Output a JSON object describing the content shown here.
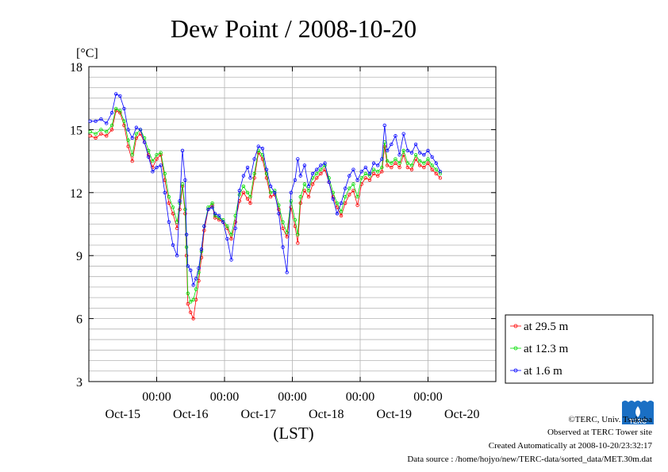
{
  "chart_data": {
    "type": "line",
    "title": "Dew Point / 2008-10-20",
    "ylabel": "[°C]",
    "xlabel": "(LST)",
    "ylim": [
      3,
      18
    ],
    "yticks": [
      3,
      6,
      9,
      12,
      15,
      18
    ],
    "xlim": [
      -1,
      5
    ],
    "xtick_positions": [
      0,
      1,
      2,
      3,
      4
    ],
    "xtick_time_labels": [
      "00:00",
      "00:00",
      "00:00",
      "00:00",
      "00:00"
    ],
    "day_labels": [
      "Oct-15",
      "Oct-16",
      "Oct-17",
      "Oct-18",
      "Oct-19",
      "Oct-20"
    ],
    "day_label_positions": [
      -0.5,
      0.5,
      1.5,
      2.5,
      3.5,
      4.5
    ],
    "x_unit": "days relative to Oct-16 00:00",
    "legend_position": "right",
    "grid": true,
    "series": [
      {
        "name": "at 29.5 m",
        "color": "#ff0000",
        "points": [
          [
            -0.98,
            14.7
          ],
          [
            -0.9,
            14.6
          ],
          [
            -0.82,
            14.8
          ],
          [
            -0.74,
            14.7
          ],
          [
            -0.66,
            15.0
          ],
          [
            -0.6,
            15.9
          ],
          [
            -0.54,
            15.8
          ],
          [
            -0.48,
            15.2
          ],
          [
            -0.42,
            14.2
          ],
          [
            -0.36,
            13.5
          ],
          [
            -0.3,
            14.6
          ],
          [
            -0.24,
            14.8
          ],
          [
            -0.18,
            14.4
          ],
          [
            -0.12,
            13.8
          ],
          [
            -0.06,
            13.2
          ],
          [
            0.0,
            13.6
          ],
          [
            0.06,
            13.8
          ],
          [
            0.12,
            12.6
          ],
          [
            0.18,
            11.5
          ],
          [
            0.24,
            11.0
          ],
          [
            0.3,
            10.3
          ],
          [
            0.34,
            11.2
          ],
          [
            0.38,
            12.3
          ],
          [
            0.42,
            11.0
          ],
          [
            0.44,
            9.0
          ],
          [
            0.46,
            6.7
          ],
          [
            0.5,
            6.3
          ],
          [
            0.54,
            6.0
          ],
          [
            0.58,
            6.9
          ],
          [
            0.62,
            7.8
          ],
          [
            0.66,
            8.9
          ],
          [
            0.7,
            10.2
          ],
          [
            0.76,
            11.2
          ],
          [
            0.82,
            11.4
          ],
          [
            0.86,
            10.8
          ],
          [
            0.92,
            10.7
          ],
          [
            0.98,
            10.6
          ],
          [
            1.04,
            10.3
          ],
          [
            1.1,
            9.8
          ],
          [
            1.16,
            10.6
          ],
          [
            1.22,
            11.6
          ],
          [
            1.28,
            12.0
          ],
          [
            1.34,
            11.7
          ],
          [
            1.38,
            11.5
          ],
          [
            1.44,
            12.7
          ],
          [
            1.5,
            13.9
          ],
          [
            1.56,
            13.6
          ],
          [
            1.62,
            12.7
          ],
          [
            1.68,
            11.8
          ],
          [
            1.74,
            11.9
          ],
          [
            1.8,
            11.2
          ],
          [
            1.86,
            10.3
          ],
          [
            1.92,
            9.9
          ],
          [
            1.98,
            11.3
          ],
          [
            2.04,
            10.4
          ],
          [
            2.08,
            9.6
          ],
          [
            2.12,
            11.5
          ],
          [
            2.18,
            12.1
          ],
          [
            2.24,
            11.8
          ],
          [
            2.3,
            12.4
          ],
          [
            2.36,
            12.7
          ],
          [
            2.42,
            12.9
          ],
          [
            2.48,
            13.1
          ],
          [
            2.54,
            12.5
          ],
          [
            2.6,
            11.8
          ],
          [
            2.66,
            11.3
          ],
          [
            2.72,
            10.9
          ],
          [
            2.78,
            11.5
          ],
          [
            2.84,
            11.9
          ],
          [
            2.9,
            12.1
          ],
          [
            2.96,
            11.4
          ],
          [
            3.02,
            12.4
          ],
          [
            3.08,
            12.7
          ],
          [
            3.14,
            12.6
          ],
          [
            3.2,
            12.9
          ],
          [
            3.26,
            12.8
          ],
          [
            3.32,
            13.0
          ],
          [
            3.36,
            14.2
          ],
          [
            3.4,
            13.3
          ],
          [
            3.46,
            13.2
          ],
          [
            3.52,
            13.4
          ],
          [
            3.58,
            13.2
          ],
          [
            3.64,
            13.8
          ],
          [
            3.7,
            13.2
          ],
          [
            3.76,
            13.1
          ],
          [
            3.82,
            13.6
          ],
          [
            3.88,
            13.3
          ],
          [
            3.94,
            13.2
          ],
          [
            4.0,
            13.4
          ],
          [
            4.06,
            13.1
          ],
          [
            4.12,
            12.9
          ],
          [
            4.18,
            12.7
          ]
        ]
      },
      {
        "name": "at 12.3 m",
        "color": "#00dd00",
        "points": [
          [
            -0.98,
            14.9
          ],
          [
            -0.9,
            14.8
          ],
          [
            -0.82,
            15.0
          ],
          [
            -0.74,
            14.9
          ],
          [
            -0.66,
            15.2
          ],
          [
            -0.6,
            16.0
          ],
          [
            -0.54,
            15.9
          ],
          [
            -0.48,
            15.4
          ],
          [
            -0.42,
            14.5
          ],
          [
            -0.36,
            13.8
          ],
          [
            -0.3,
            14.8
          ],
          [
            -0.24,
            15.0
          ],
          [
            -0.18,
            14.6
          ],
          [
            -0.12,
            14.0
          ],
          [
            -0.06,
            13.5
          ],
          [
            0.0,
            13.8
          ],
          [
            0.06,
            13.9
          ],
          [
            0.12,
            12.9
          ],
          [
            0.18,
            11.8
          ],
          [
            0.24,
            11.3
          ],
          [
            0.3,
            10.6
          ],
          [
            0.34,
            11.5
          ],
          [
            0.38,
            12.4
          ],
          [
            0.42,
            11.2
          ],
          [
            0.44,
            9.4
          ],
          [
            0.46,
            7.2
          ],
          [
            0.5,
            6.8
          ],
          [
            0.54,
            6.9
          ],
          [
            0.58,
            7.4
          ],
          [
            0.62,
            8.2
          ],
          [
            0.66,
            9.2
          ],
          [
            0.7,
            10.4
          ],
          [
            0.76,
            11.3
          ],
          [
            0.82,
            11.5
          ],
          [
            0.86,
            10.9
          ],
          [
            0.92,
            10.8
          ],
          [
            0.98,
            10.7
          ],
          [
            1.04,
            10.4
          ],
          [
            1.1,
            10.0
          ],
          [
            1.16,
            10.9
          ],
          [
            1.22,
            11.9
          ],
          [
            1.28,
            12.3
          ],
          [
            1.34,
            12.0
          ],
          [
            1.38,
            11.8
          ],
          [
            1.44,
            12.9
          ],
          [
            1.5,
            14.0
          ],
          [
            1.56,
            13.8
          ],
          [
            1.62,
            12.9
          ],
          [
            1.68,
            12.0
          ],
          [
            1.74,
            12.1
          ],
          [
            1.8,
            11.4
          ],
          [
            1.86,
            10.6
          ],
          [
            1.92,
            10.1
          ],
          [
            1.98,
            11.6
          ],
          [
            2.04,
            10.7
          ],
          [
            2.08,
            10.0
          ],
          [
            2.12,
            11.8
          ],
          [
            2.18,
            12.4
          ],
          [
            2.24,
            12.1
          ],
          [
            2.3,
            12.7
          ],
          [
            2.36,
            12.9
          ],
          [
            2.42,
            13.1
          ],
          [
            2.48,
            13.3
          ],
          [
            2.54,
            12.7
          ],
          [
            2.6,
            12.0
          ],
          [
            2.66,
            11.5
          ],
          [
            2.72,
            11.1
          ],
          [
            2.78,
            11.8
          ],
          [
            2.84,
            12.2
          ],
          [
            2.9,
            12.4
          ],
          [
            2.96,
            11.8
          ],
          [
            3.02,
            12.7
          ],
          [
            3.08,
            12.9
          ],
          [
            3.14,
            12.8
          ],
          [
            3.2,
            13.1
          ],
          [
            3.26,
            13.0
          ],
          [
            3.32,
            13.2
          ],
          [
            3.36,
            14.4
          ],
          [
            3.4,
            13.5
          ],
          [
            3.46,
            13.4
          ],
          [
            3.52,
            13.6
          ],
          [
            3.58,
            13.4
          ],
          [
            3.64,
            14.0
          ],
          [
            3.7,
            13.4
          ],
          [
            3.76,
            13.3
          ],
          [
            3.82,
            13.8
          ],
          [
            3.88,
            13.5
          ],
          [
            3.94,
            13.4
          ],
          [
            4.0,
            13.6
          ],
          [
            4.06,
            13.3
          ],
          [
            4.12,
            13.1
          ],
          [
            4.18,
            12.9
          ]
        ]
      },
      {
        "name": "at 1.6 m",
        "color": "#0000ff",
        "points": [
          [
            -0.98,
            15.4
          ],
          [
            -0.9,
            15.4
          ],
          [
            -0.82,
            15.5
          ],
          [
            -0.74,
            15.3
          ],
          [
            -0.66,
            15.8
          ],
          [
            -0.6,
            16.7
          ],
          [
            -0.54,
            16.6
          ],
          [
            -0.48,
            16.0
          ],
          [
            -0.42,
            15.0
          ],
          [
            -0.36,
            14.6
          ],
          [
            -0.3,
            15.1
          ],
          [
            -0.24,
            15.0
          ],
          [
            -0.18,
            14.4
          ],
          [
            -0.12,
            13.7
          ],
          [
            -0.06,
            13.0
          ],
          [
            0.0,
            13.2
          ],
          [
            0.06,
            13.3
          ],
          [
            0.12,
            12.0
          ],
          [
            0.18,
            10.6
          ],
          [
            0.24,
            9.5
          ],
          [
            0.3,
            9.0
          ],
          [
            0.34,
            11.6
          ],
          [
            0.38,
            14.0
          ],
          [
            0.42,
            12.6
          ],
          [
            0.44,
            10.0
          ],
          [
            0.46,
            8.5
          ],
          [
            0.5,
            8.3
          ],
          [
            0.54,
            7.6
          ],
          [
            0.58,
            7.9
          ],
          [
            0.62,
            8.4
          ],
          [
            0.66,
            9.3
          ],
          [
            0.7,
            10.4
          ],
          [
            0.76,
            11.2
          ],
          [
            0.82,
            11.3
          ],
          [
            0.86,
            11.0
          ],
          [
            0.92,
            10.9
          ],
          [
            0.98,
            10.6
          ],
          [
            1.04,
            9.8
          ],
          [
            1.1,
            8.8
          ],
          [
            1.16,
            10.3
          ],
          [
            1.22,
            12.1
          ],
          [
            1.28,
            12.8
          ],
          [
            1.34,
            13.2
          ],
          [
            1.38,
            12.7
          ],
          [
            1.44,
            13.6
          ],
          [
            1.5,
            14.2
          ],
          [
            1.56,
            14.1
          ],
          [
            1.62,
            13.1
          ],
          [
            1.68,
            12.3
          ],
          [
            1.74,
            12.0
          ],
          [
            1.8,
            11.0
          ],
          [
            1.86,
            9.4
          ],
          [
            1.92,
            8.2
          ],
          [
            1.98,
            12.0
          ],
          [
            2.04,
            12.6
          ],
          [
            2.08,
            13.6
          ],
          [
            2.12,
            12.8
          ],
          [
            2.18,
            13.3
          ],
          [
            2.24,
            12.3
          ],
          [
            2.3,
            12.9
          ],
          [
            2.36,
            13.1
          ],
          [
            2.42,
            13.3
          ],
          [
            2.48,
            13.4
          ],
          [
            2.54,
            12.5
          ],
          [
            2.6,
            11.7
          ],
          [
            2.66,
            11.0
          ],
          [
            2.72,
            11.5
          ],
          [
            2.78,
            12.2
          ],
          [
            2.84,
            12.8
          ],
          [
            2.9,
            13.1
          ],
          [
            2.96,
            12.6
          ],
          [
            3.02,
            13.0
          ],
          [
            3.08,
            13.2
          ],
          [
            3.14,
            12.9
          ],
          [
            3.2,
            13.4
          ],
          [
            3.26,
            13.3
          ],
          [
            3.32,
            13.6
          ],
          [
            3.36,
            15.2
          ],
          [
            3.4,
            14.0
          ],
          [
            3.46,
            14.3
          ],
          [
            3.52,
            14.7
          ],
          [
            3.58,
            13.8
          ],
          [
            3.64,
            14.8
          ],
          [
            3.7,
            14.0
          ],
          [
            3.76,
            13.9
          ],
          [
            3.82,
            14.3
          ],
          [
            3.88,
            13.9
          ],
          [
            3.94,
            13.8
          ],
          [
            4.0,
            14.0
          ],
          [
            4.06,
            13.7
          ],
          [
            4.12,
            13.4
          ],
          [
            4.18,
            13.0
          ]
        ]
      }
    ]
  },
  "footer": {
    "copyright": "©TERC, Univ. Tsukuba",
    "observed": "Observed at TERC Tower site",
    "created": "Created Automatically at 2008-10-20/23:32:17",
    "source": "Data source : /home/hojyo/new/TERC-data/sorted_data/MET.30m.dat"
  },
  "logo": {
    "text": "TERC",
    "color": "#1a6fc4"
  }
}
